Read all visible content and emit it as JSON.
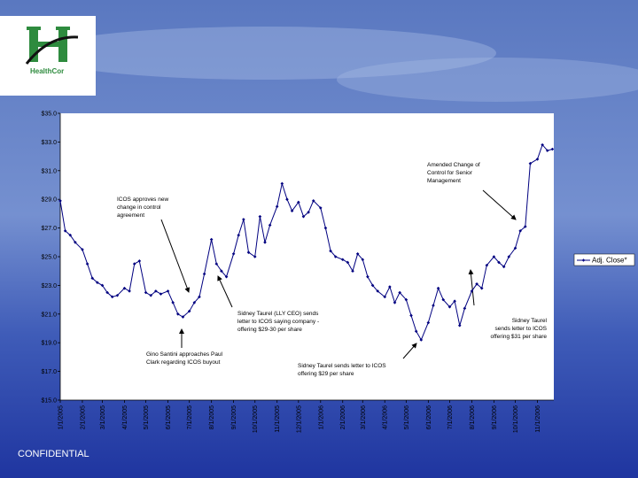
{
  "header": {
    "logo_text": "HealthCor"
  },
  "footer": "CONFIDENTIAL",
  "chart_data": {
    "type": "line",
    "x": [
      "1/1/2005",
      "1/8/2005",
      "1/15/2005",
      "1/22/2005",
      "2/1/2005",
      "2/8/2005",
      "2/15/2005",
      "2/22/2005",
      "3/1/2005",
      "3/8/2005",
      "3/15/2005",
      "3/22/2005",
      "4/1/2005",
      "4/8/2005",
      "4/15/2005",
      "4/22/2005",
      "5/1/2005",
      "5/8/2005",
      "5/15/2005",
      "5/22/2005",
      "6/1/2005",
      "6/8/2005",
      "6/15/2005",
      "6/22/2005",
      "7/1/2005",
      "7/8/2005",
      "7/15/2005",
      "7/22/2005",
      "8/1/2005",
      "8/8/2005",
      "8/15/2005",
      "8/22/2005",
      "9/1/2005",
      "9/8/2005",
      "9/15/2005",
      "9/22/2005",
      "10/1/2005",
      "10/8/2005",
      "10/15/2005",
      "10/22/2005",
      "11/1/2005",
      "11/8/2005",
      "11/15/2005",
      "11/22/2005",
      "12/1/2005",
      "12/8/2005",
      "12/15/2005",
      "12/22/2005",
      "1/1/2006",
      "1/8/2006",
      "1/15/2006",
      "1/22/2006",
      "2/1/2006",
      "2/8/2006",
      "2/15/2006",
      "2/22/2006",
      "3/1/2006",
      "3/8/2006",
      "3/15/2006",
      "3/22/2006",
      "4/1/2006",
      "4/8/2006",
      "4/15/2006",
      "4/22/2006",
      "5/1/2006",
      "5/8/2006",
      "5/15/2006",
      "5/22/2006",
      "6/1/2006",
      "6/8/2006",
      "6/15/2006",
      "6/22/2006",
      "7/1/2006",
      "7/8/2006",
      "7/15/2006",
      "7/22/2006",
      "8/1/2006",
      "8/8/2006",
      "8/15/2006",
      "8/22/2006",
      "9/1/2006",
      "9/8/2006",
      "9/15/2006",
      "9/22/2006",
      "10/1/2006",
      "10/8/2006",
      "10/15/2006",
      "10/22/2006",
      "11/1/2006",
      "11/8/2006",
      "11/15/2006",
      "11/22/2006"
    ],
    "series": [
      {
        "name": "Adj. Close*",
        "color": "#000080",
        "values": [
          28.9,
          26.8,
          26.5,
          26.0,
          25.5,
          24.5,
          23.5,
          23.2,
          23.0,
          22.5,
          22.2,
          22.3,
          22.8,
          22.6,
          24.5,
          24.7,
          22.5,
          22.3,
          22.6,
          22.4,
          22.6,
          21.8,
          21.0,
          20.8,
          21.2,
          21.8,
          22.2,
          23.8,
          26.2,
          24.5,
          24.0,
          23.6,
          25.2,
          26.5,
          27.6,
          25.3,
          25.0,
          27.8,
          26.0,
          27.2,
          28.5,
          30.1,
          29.0,
          28.2,
          28.8,
          27.8,
          28.1,
          28.9,
          28.4,
          27.0,
          25.4,
          25.0,
          24.8,
          24.6,
          24.0,
          25.2,
          24.8,
          23.6,
          23.0,
          22.6,
          22.2,
          22.9,
          21.8,
          22.5,
          22.0,
          20.9,
          19.8,
          19.2,
          20.4,
          21.6,
          22.8,
          22.0,
          21.5,
          21.9,
          20.2,
          21.4,
          22.6,
          23.1,
          22.8,
          24.4,
          25.0,
          24.6,
          24.3,
          25.0,
          25.6,
          26.8,
          27.1,
          31.5,
          31.8,
          32.8,
          32.4,
          32.5
        ]
      }
    ],
    "xlim": [
      "1/1/2005",
      "11/24/2006"
    ],
    "xticks": [
      "1/1/2005",
      "2/1/2005",
      "3/1/2005",
      "4/1/2005",
      "5/1/2005",
      "6/1/2005",
      "7/1/2005",
      "8/1/2005",
      "9/1/2005",
      "10/1/2005",
      "11/1/2005",
      "12/1/2005",
      "1/1/2006",
      "2/1/2006",
      "3/1/2006",
      "4/1/2006",
      "5/1/2006",
      "6/1/2006",
      "7/1/2006",
      "8/1/2006",
      "9/1/2006",
      "10/1/2006",
      "11/1/2006"
    ],
    "ylim": [
      15,
      35
    ],
    "yticks": [
      {
        "value": 15,
        "label": "$15.0"
      },
      {
        "value": 17,
        "label": "$17.0"
      },
      {
        "value": 19,
        "label": "$19.0"
      },
      {
        "value": 21,
        "label": "$21.0"
      },
      {
        "value": 23,
        "label": "$23.0"
      },
      {
        "value": 25,
        "label": "$25.0"
      },
      {
        "value": 27,
        "label": "$27.0"
      },
      {
        "value": 29,
        "label": "$29.0"
      },
      {
        "value": 31,
        "label": "$31.0"
      },
      {
        "value": 33,
        "label": "$33.0"
      },
      {
        "value": 35,
        "label": "$35.0"
      }
    ],
    "annotations": [
      {
        "lines": [
          "ICOS approves new",
          "change in control",
          "agreement"
        ]
      },
      {
        "lines": [
          "Gino Santini approaches Paul",
          "Clark regarding ICOS buyout"
        ]
      },
      {
        "lines": [
          "Sidney Taurel (LLY CEO) sends",
          "letter to ICOS saying company -",
          "offering $29-30 per share"
        ]
      },
      {
        "lines": [
          "Sidney Taurel sends letter to ICOS",
          "offering $29 per share"
        ]
      },
      {
        "lines": [
          "Amended Change of",
          "Control for Senior",
          "Management"
        ]
      },
      {
        "lines": [
          "Sidney Taurel",
          "sends letter to ICOS",
          "offering $31 per share"
        ]
      }
    ]
  }
}
